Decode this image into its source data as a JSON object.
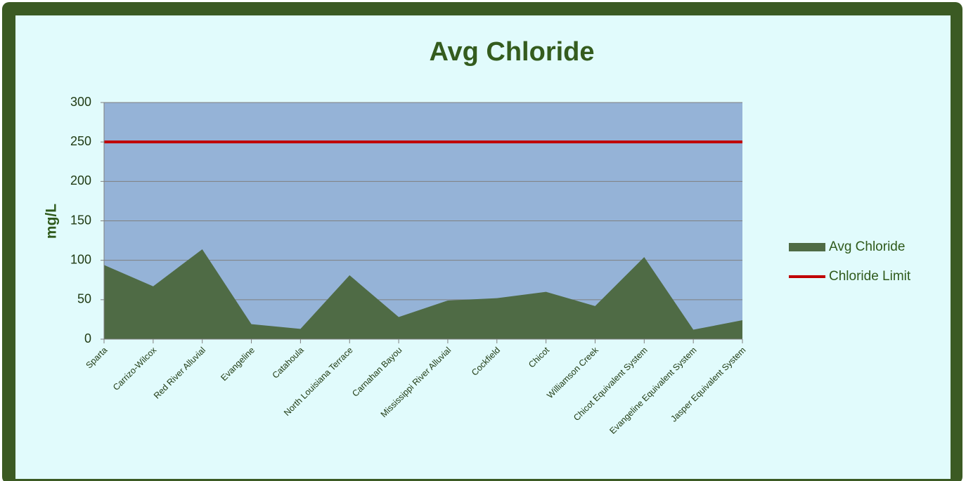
{
  "chart_data": {
    "type": "area",
    "title": "Avg Chloride",
    "y_label": "mg/L",
    "categories": [
      "Sparta",
      "Carrizo-Wilcox",
      "Red River Alluvial",
      "Evangeline",
      "Catahoula",
      "North Louisiana Terrace",
      "Carnahan Bayou",
      "Mississippi River Alluvial",
      "Cockfield",
      "Chicot",
      "Williamson Creek",
      "Chicot Equivalent System",
      "Evangeline Equivalent System",
      "Jasper Equivalent System"
    ],
    "series": [
      {
        "name": "Avg Chloride",
        "type": "area",
        "color": "#4f6b45",
        "values": [
          94,
          67,
          114,
          19,
          13,
          81,
          28,
          49,
          52,
          60,
          42,
          104,
          12,
          24
        ]
      },
      {
        "name": "Chloride Limit",
        "type": "line",
        "color": "#c00000",
        "values": [
          250,
          250,
          250,
          250,
          250,
          250,
          250,
          250,
          250,
          250,
          250,
          250,
          250,
          250
        ]
      }
    ],
    "ylim": [
      0,
      300
    ],
    "yticks": [
      0,
      50,
      100,
      150,
      200,
      250,
      300
    ],
    "grid": true,
    "legend": "right"
  }
}
